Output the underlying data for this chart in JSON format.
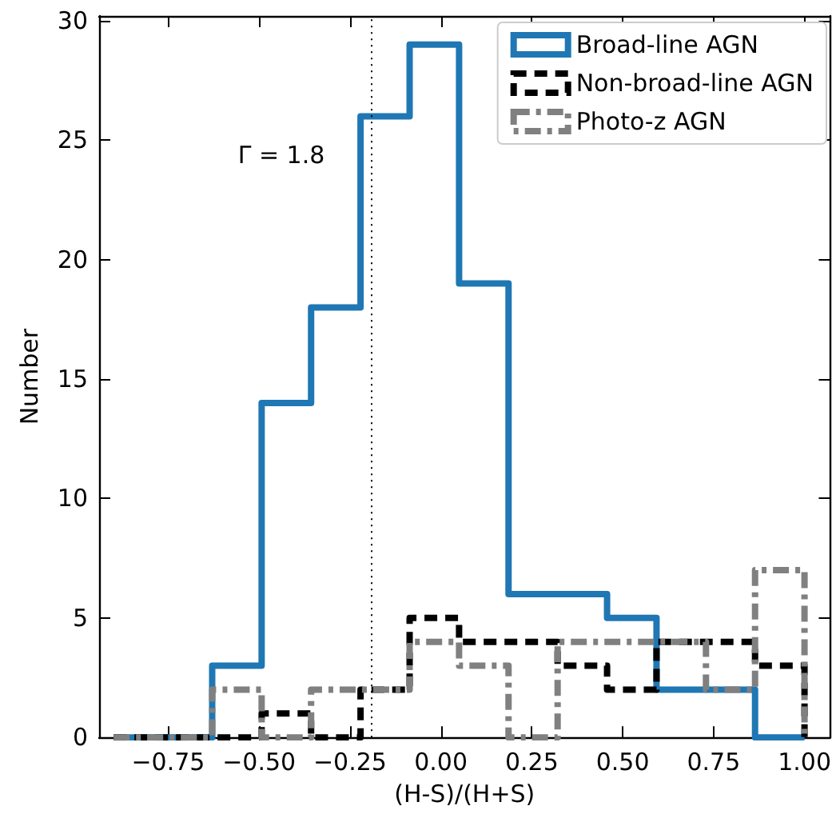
{
  "chart_data": {
    "type": "histogram",
    "xlabel": "(H-S)/(H+S)",
    "ylabel": "Number",
    "bins": [
      -0.9,
      -0.764,
      -0.629,
      -0.493,
      -0.357,
      -0.221,
      -0.086,
      0.05,
      0.186,
      0.321,
      0.457,
      0.593,
      0.729,
      0.864,
      1.0
    ],
    "series": [
      {
        "name": "Broad-line AGN",
        "color": "#1f77b4",
        "line_style": "solid",
        "values": [
          0,
          0,
          3,
          14,
          18,
          26,
          29,
          19,
          6,
          6,
          5,
          2,
          2,
          0
        ]
      },
      {
        "name": "Non-broad-line AGN",
        "color": "#000000",
        "line_style": "dashed",
        "values": [
          0,
          0,
          0,
          1,
          0,
          2,
          5,
          4,
          4,
          3,
          2,
          4,
          4,
          3
        ]
      },
      {
        "name": "Photo-z AGN",
        "color": "#808080",
        "line_style": "dashdot",
        "values": [
          0,
          0,
          2,
          0,
          2,
          2,
          4,
          3,
          0,
          4,
          4,
          4,
          2,
          7
        ]
      }
    ],
    "xlim": [
      -0.94,
      1.07
    ],
    "xticks": [
      {
        "value": -0.75,
        "label": "−0.75"
      },
      {
        "value": -0.5,
        "label": "−0.50"
      },
      {
        "value": -0.25,
        "label": "−0.25"
      },
      {
        "value": 0,
        "label": "0.00"
      },
      {
        "value": 0.25,
        "label": "0.25"
      },
      {
        "value": 0.5,
        "label": "0.50"
      },
      {
        "value": 0.75,
        "label": "0.75"
      },
      {
        "value": 1,
        "label": "1.00"
      }
    ],
    "ylim": [
      0,
      30.2
    ],
    "yticks": [
      0,
      5,
      10,
      15,
      20,
      25,
      30
    ],
    "ref_lines": [
      {
        "axis": "x",
        "value": -0.19,
        "color": "#000000",
        "line_style": "dotted"
      }
    ],
    "annotations": [
      "Γ = 1.8"
    ],
    "legend": "top right",
    "grid": false
  }
}
